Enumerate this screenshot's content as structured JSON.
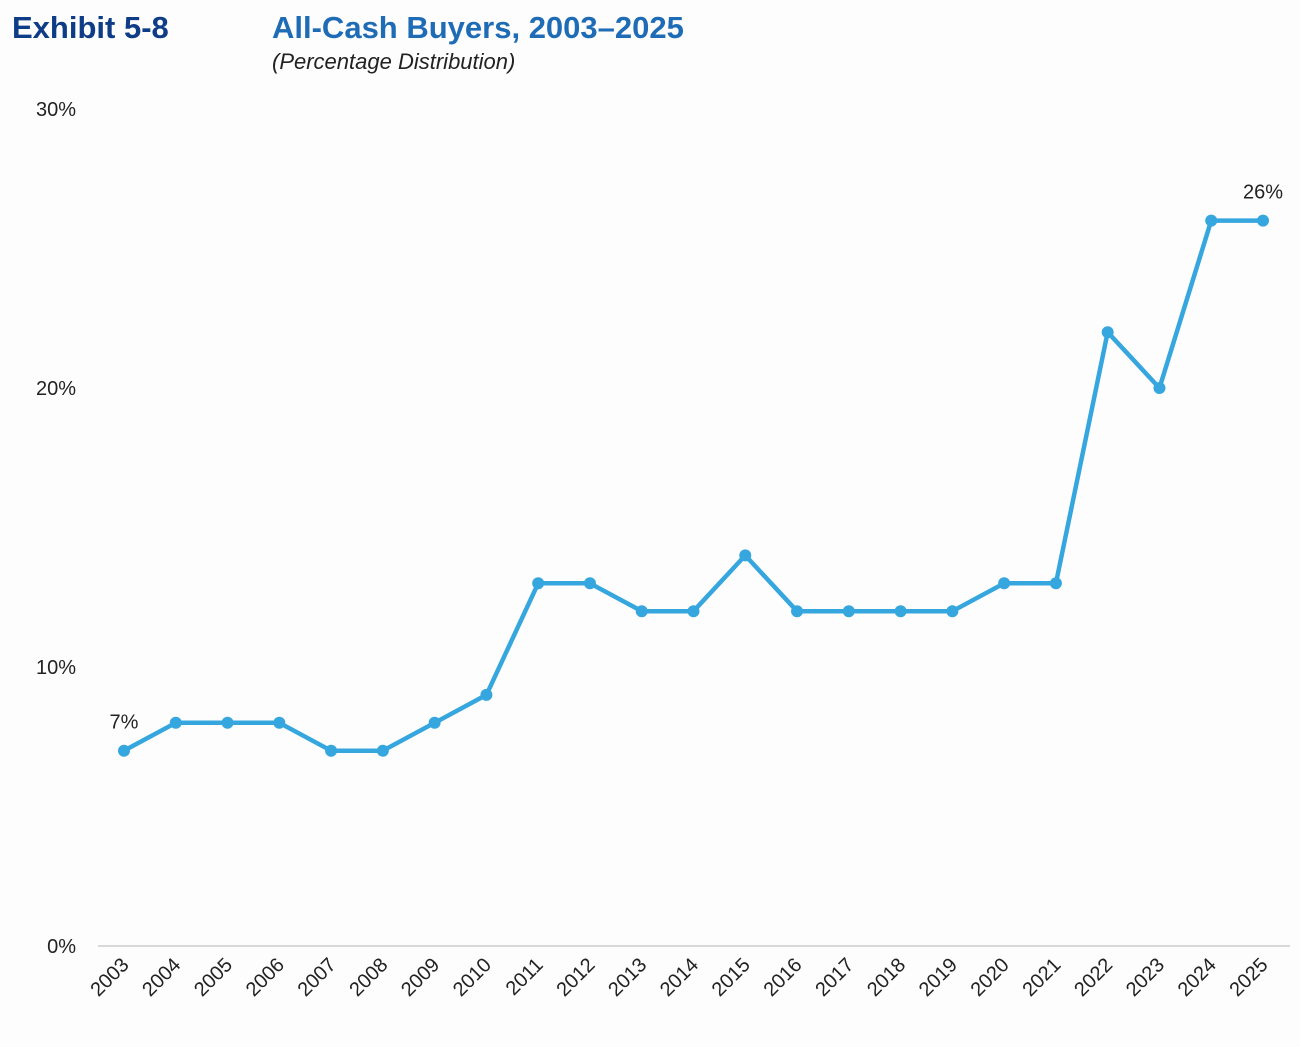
{
  "header": {
    "exhibit": "Exhibit 5-8",
    "title": "All-Cash Buyers, 2003–2025",
    "subtitle": "(Percentage Distribution)"
  },
  "colors": {
    "line": "#36a6de",
    "axis": "#cccccc",
    "exhibit": "#0e3c86",
    "title": "#1f6cb6"
  },
  "chart_data": {
    "type": "line",
    "title": "All-Cash Buyers, 2003–2025",
    "subtitle": "(Percentage Distribution)",
    "xlabel": "",
    "ylabel": "",
    "categories": [
      "2003",
      "2004",
      "2005",
      "2006",
      "2007",
      "2008",
      "2009",
      "2010",
      "2011",
      "2012",
      "2013",
      "2014",
      "2015",
      "2016",
      "2017",
      "2018",
      "2019",
      "2020",
      "2021",
      "2022",
      "2023",
      "2024",
      "2025"
    ],
    "series": [
      {
        "name": "All-Cash Buyers",
        "values": [
          7,
          8,
          8,
          8,
          7,
          7,
          8,
          9,
          13,
          13,
          12,
          12,
          14,
          12,
          12,
          12,
          12,
          13,
          13,
          22,
          20,
          26,
          26
        ]
      }
    ],
    "ylim": [
      0,
      30
    ],
    "yticks": [
      0,
      10,
      20,
      30
    ],
    "ytick_labels": [
      "0%",
      "10%",
      "20%",
      "30%"
    ],
    "data_labels": [
      {
        "index": 0,
        "text": "7%"
      },
      {
        "index": 22,
        "text": "26%"
      }
    ],
    "grid": false,
    "legend": "none"
  }
}
